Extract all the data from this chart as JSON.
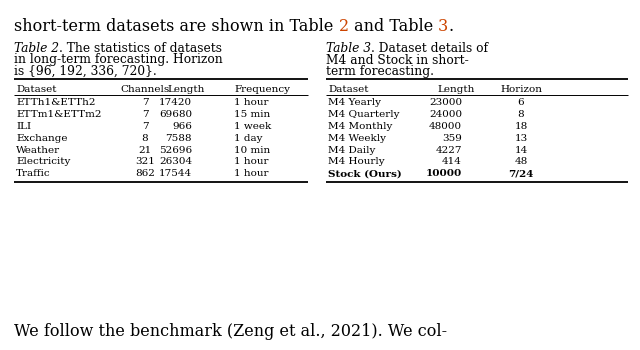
{
  "top_text": "short-term datasets are shown in Table 2 and Table 3.",
  "top_text_segments": [
    [
      "short-term datasets are shown in Table ",
      "#000000",
      false
    ],
    [
      "2",
      "#CC4400",
      false
    ],
    [
      " and Table ",
      "#000000",
      false
    ],
    [
      "3",
      "#CC4400",
      false
    ],
    [
      ".",
      "#000000",
      false
    ]
  ],
  "table2_caption_italic": "Table 2",
  "table2_caption_rest": ". The statistics of datasets\nin long-term forecasting. Horizon\nis {96, 192, 336, 720}.",
  "table2_headers": [
    "Dataset",
    "Channels",
    "Length",
    "Frequency"
  ],
  "table2_col_align": [
    "left",
    "center",
    "right",
    "left"
  ],
  "table2_rows": [
    [
      "ETTh1&ETTh2",
      "7",
      "17420",
      "1 hour"
    ],
    [
      "ETTm1&ETTm2",
      "7",
      "69680",
      "15 min"
    ],
    [
      "ILI",
      "7",
      "966",
      "1 week"
    ],
    [
      "Exchange",
      "8",
      "7588",
      "1 day"
    ],
    [
      "Weather",
      "21",
      "52696",
      "10 min"
    ],
    [
      "Electricity",
      "321",
      "26304",
      "1 hour"
    ],
    [
      "Traffic",
      "862",
      "17544",
      "1 hour"
    ]
  ],
  "table3_caption_italic": "Table 3",
  "table3_caption_rest": ". Dataset details of\nM4 and Stock in short-\nterm forecasting.",
  "table3_headers": [
    "Dataset",
    "Length",
    "Horizon"
  ],
  "table3_rows": [
    [
      "M4 Yearly",
      "23000",
      "6",
      false
    ],
    [
      "M4 Quarterly",
      "24000",
      "8",
      false
    ],
    [
      "M4 Monthly",
      "48000",
      "18",
      false
    ],
    [
      "M4 Weekly",
      "359",
      "13",
      false
    ],
    [
      "M4 Daily",
      "4227",
      "14",
      false
    ],
    [
      "M4 Hourly",
      "414",
      "48",
      false
    ],
    [
      "Stock (Ours)",
      "10000",
      "7/24",
      true
    ]
  ],
  "bottom_text": "We follow the benchmark (Zeng et al., 2021). We col-",
  "bg": "#ffffff",
  "orange": "#CC4400"
}
